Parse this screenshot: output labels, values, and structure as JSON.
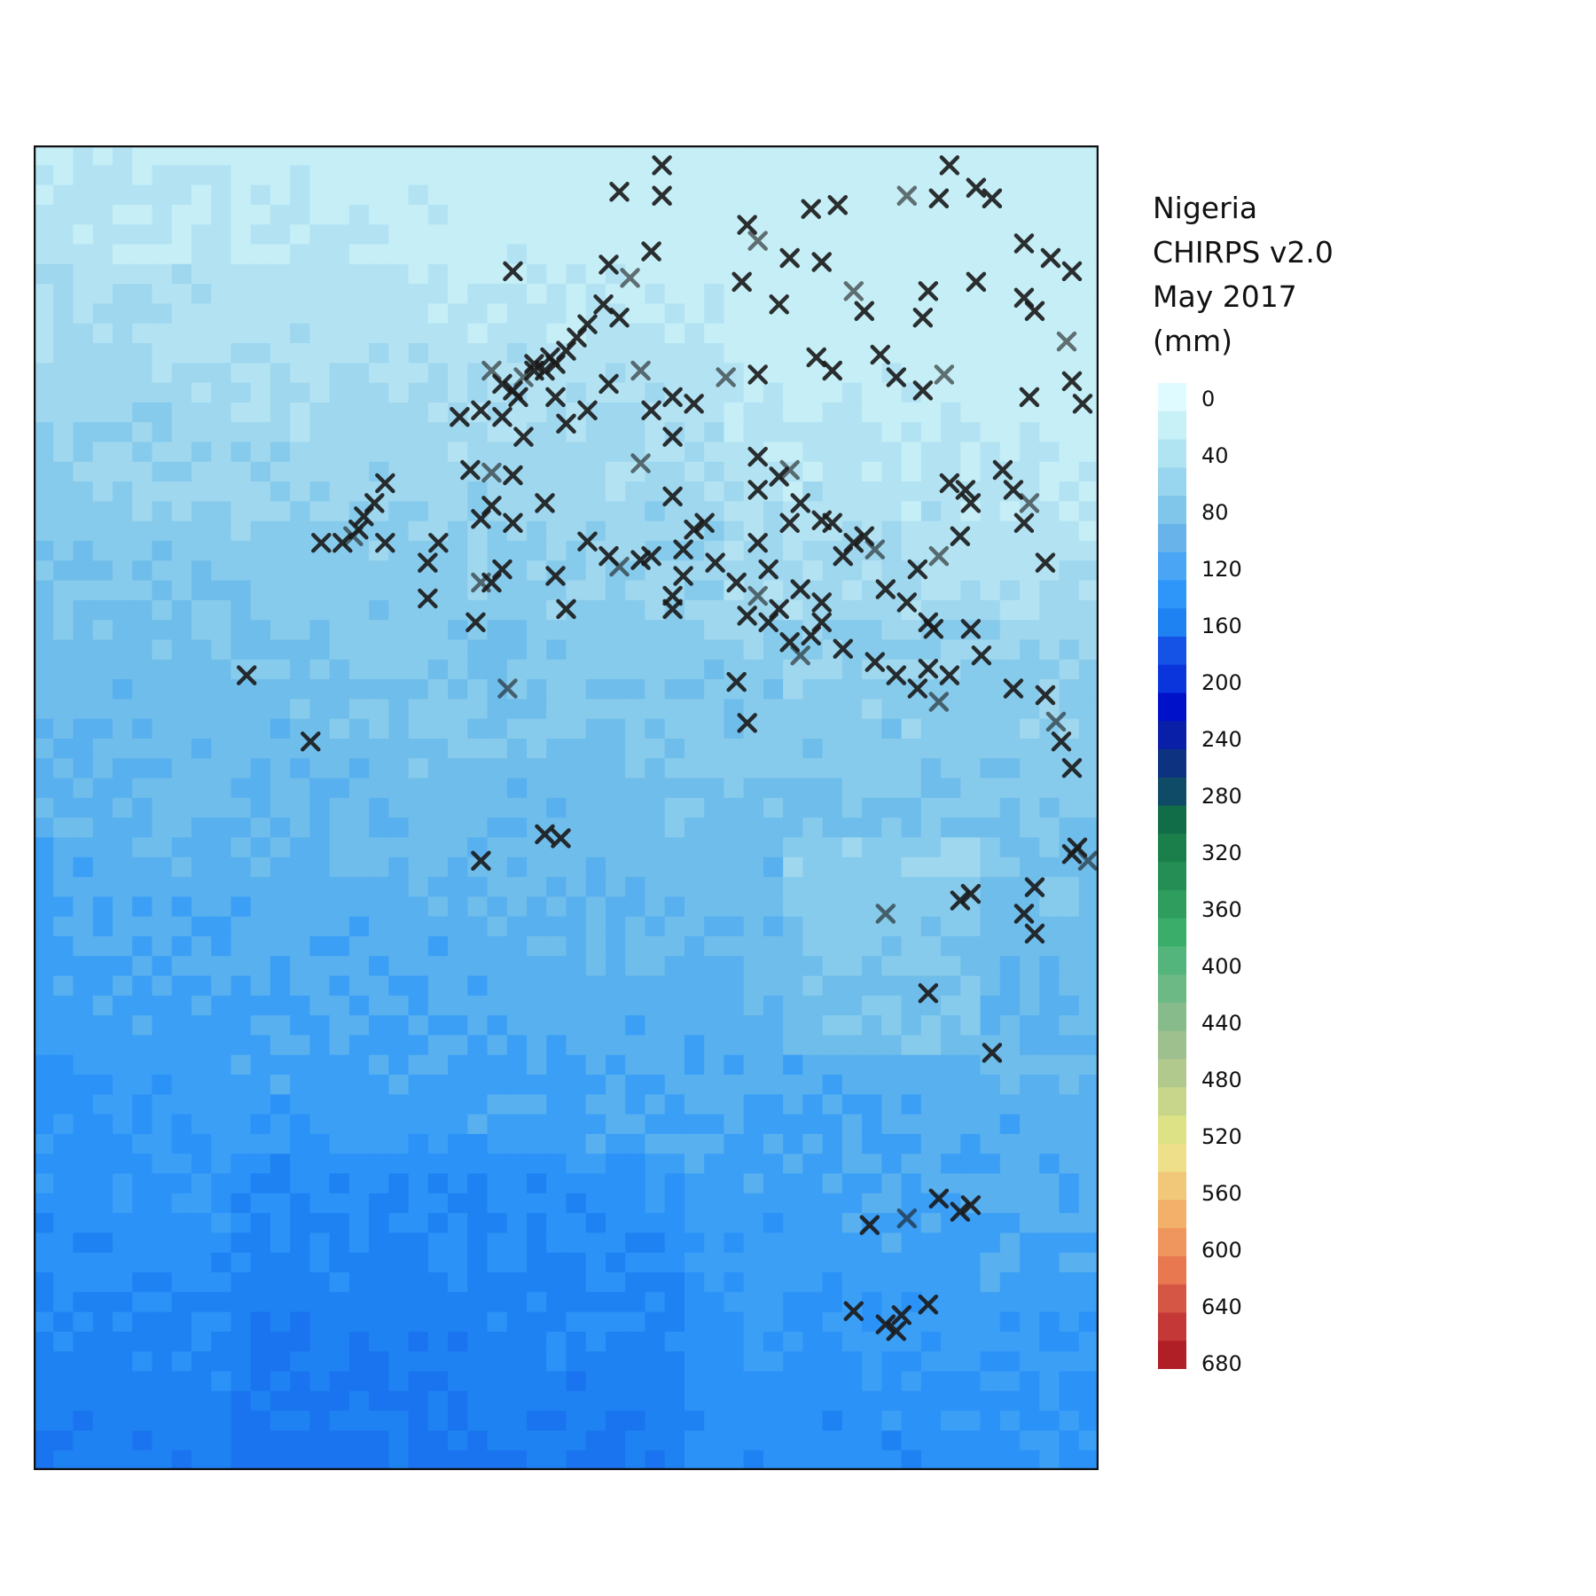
{
  "legend": {
    "title_lines": [
      "Nigeria",
      "CHIRPS v2.0",
      "May 2017",
      "(mm)"
    ],
    "tick_labels": [
      "0",
      "40",
      "80",
      "120",
      "160",
      "200",
      "240",
      "280",
      "320",
      "360",
      "400",
      "440",
      "480",
      "520",
      "560",
      "600",
      "640",
      "680"
    ],
    "color_steps": [
      "#e0fbff",
      "#c8f0f7",
      "#b0e4f3",
      "#98d5ee",
      "#80c6ea",
      "#68b4ea",
      "#4aa6f4",
      "#2e96f8",
      "#1f82f2",
      "#1552e6",
      "#0a35dc",
      "#0012c9",
      "#0a1fa8",
      "#0d327f",
      "#0f4a66",
      "#116d47",
      "#1b7f4c",
      "#258e55",
      "#2e9d5e",
      "#3aad6b",
      "#54b57c",
      "#6cb985",
      "#87bb8c",
      "#9ebf8e",
      "#b2c98e",
      "#c8d68c",
      "#dde286",
      "#eee08a",
      "#f1c87a",
      "#f2b06a",
      "#ef955e",
      "#e7784f",
      "#d65645",
      "#c43838",
      "#b01f25"
    ]
  },
  "map": {
    "title": "",
    "region": "Nigeria",
    "variable": "CHIRPS v2.0 precipitation",
    "period": "May 2017",
    "unit": "mm",
    "marker": "x-marker",
    "marker_color": "#1a1a1a"
  }
}
